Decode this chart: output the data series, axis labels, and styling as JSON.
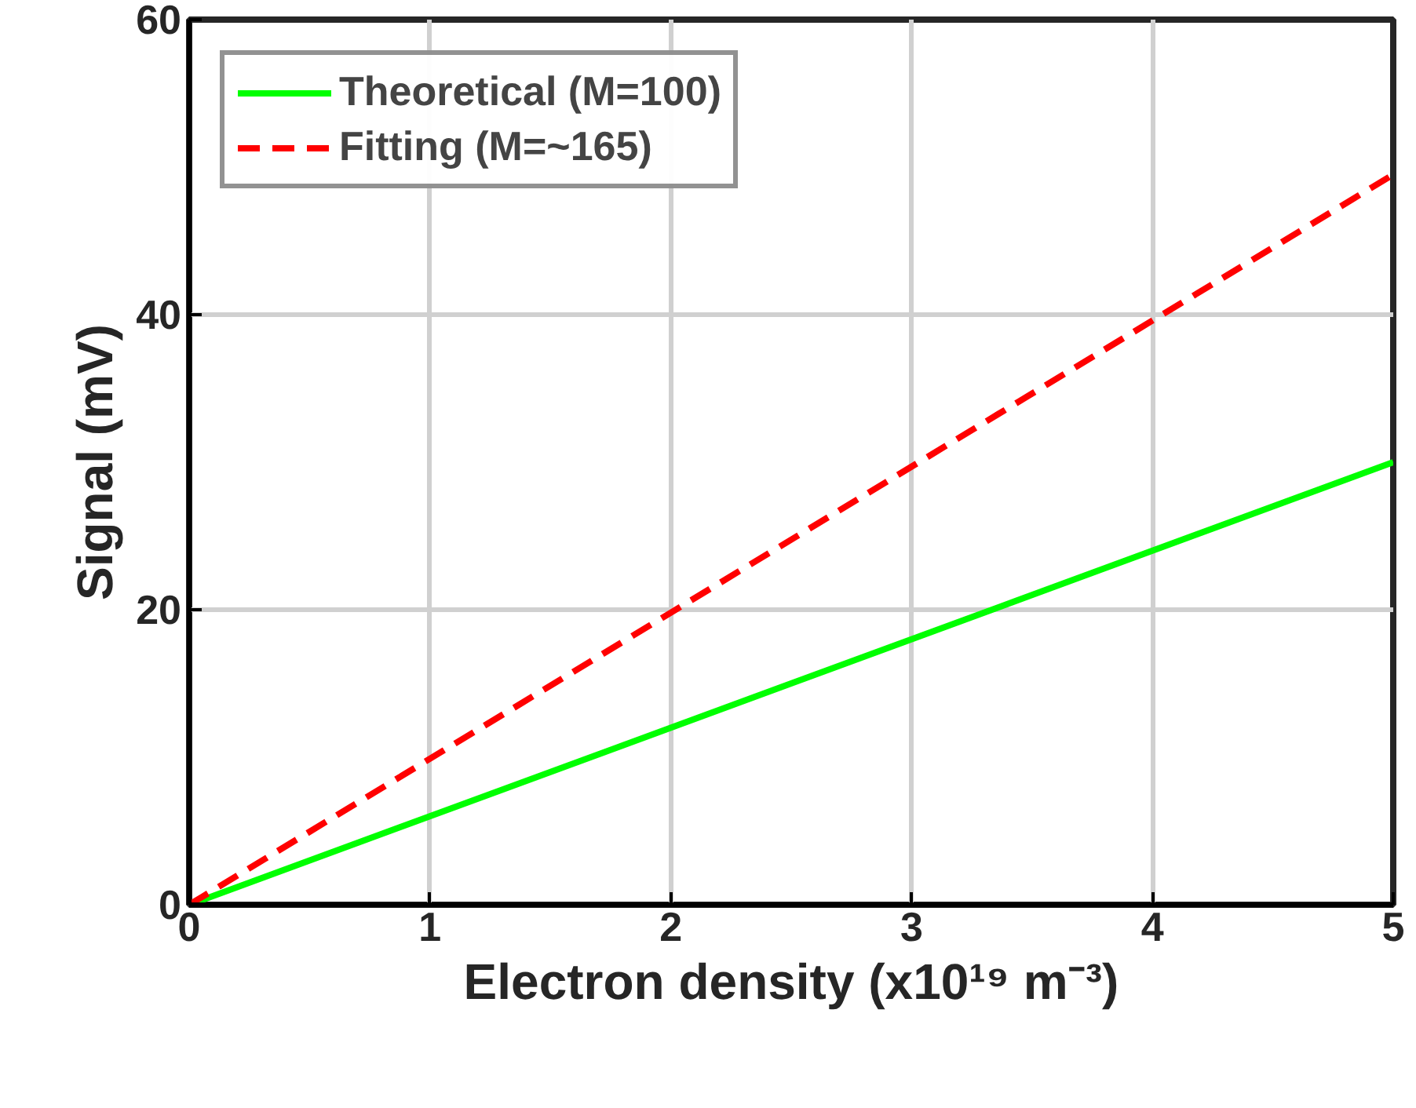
{
  "chart_data": {
    "type": "line",
    "xlabel": "Electron density (x10¹⁹ m⁻³)",
    "ylabel": "Signal (mV)",
    "x": [
      0,
      5
    ],
    "xlim": [
      0,
      5
    ],
    "xticks": [
      0,
      1,
      2,
      3,
      4,
      5
    ],
    "ylim": [
      0,
      60
    ],
    "yticks": [
      0,
      20,
      40,
      60
    ],
    "grid": true,
    "legend": "top left",
    "series": [
      {
        "name": "Theoretical (M=100)",
        "color": "#00ff00",
        "values": [
          0,
          30
        ],
        "line_style": "solid"
      },
      {
        "name": "Fitting (M=~165)",
        "color": "#ff0000",
        "values": [
          0,
          49.5
        ],
        "line_style": "dashed"
      }
    ]
  }
}
